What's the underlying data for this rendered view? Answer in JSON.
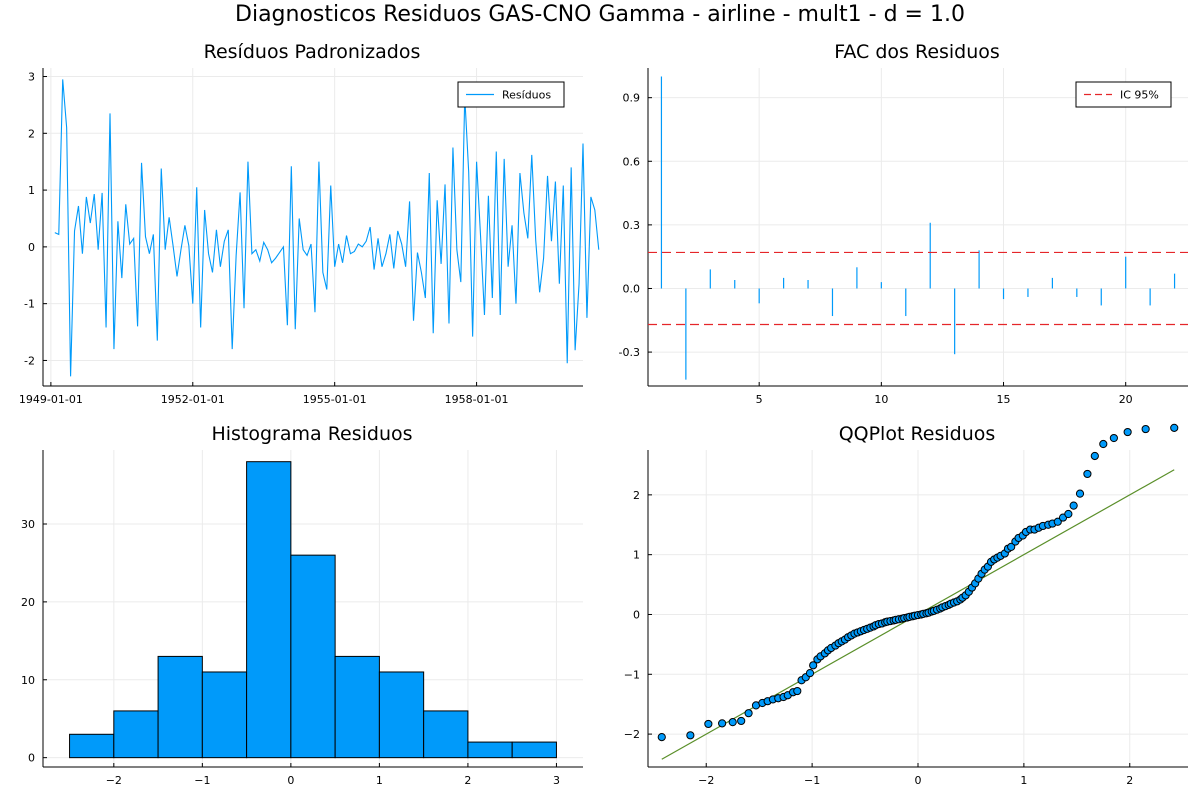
{
  "figure": {
    "suptitle": "Diagnosticos Residuos  GAS-CNO Gamma - airline - mult1 - d = 1.0"
  },
  "colors": {
    "series": "#009AFA",
    "ci": "#E5262A",
    "ref_line": "#5A8F29",
    "grid": "#EBEBEB",
    "axis": "#000000",
    "marker_edge": "#000000"
  },
  "chart_data": [
    {
      "id": "residuals",
      "type": "line",
      "title": "Resíduos Padronizados",
      "xlabel": "",
      "ylabel": "",
      "x_start": "1949-02",
      "x_step": "month",
      "xlim": [
        "1948-11",
        "1960-04"
      ],
      "ylim": [
        -2.45,
        3.15
      ],
      "xticks": [
        "1949-01-01",
        "1952-01-01",
        "1955-01-01",
        "1958-01-01"
      ],
      "yticks": [
        -2,
        -1,
        0,
        1,
        2,
        3
      ],
      "legend": {
        "position": "top-right",
        "entries": [
          "Resíduos"
        ]
      },
      "grid": true,
      "series": [
        {
          "name": "Resíduos",
          "values": [
            0.25,
            0.22,
            2.95,
            2.1,
            -2.28,
            0.28,
            0.72,
            -0.12,
            0.88,
            0.42,
            0.93,
            -0.05,
            0.95,
            -1.42,
            2.35,
            -1.8,
            0.45,
            -0.55,
            0.75,
            0.05,
            0.15,
            -1.4,
            1.48,
            0.18,
            -0.12,
            0.22,
            -1.65,
            1.38,
            -0.05,
            0.52,
            0.02,
            -0.52,
            -0.05,
            0.38,
            0.02,
            -1.0,
            1.05,
            -1.42,
            0.65,
            -0.12,
            -0.45,
            0.3,
            -0.35,
            0.1,
            0.3,
            -1.8,
            -0.15,
            0.96,
            -1.08,
            1.5,
            -0.12,
            -0.05,
            -0.25,
            0.08,
            -0.05,
            -0.28,
            -0.2,
            -0.1,
            0.0,
            -1.38,
            1.42,
            -1.45,
            0.5,
            -0.05,
            -0.15,
            0.05,
            -1.15,
            1.5,
            -0.45,
            -0.75,
            1.08,
            -0.35,
            0.05,
            -0.28,
            0.2,
            -0.12,
            -0.08,
            0.05,
            0.0,
            0.1,
            0.35,
            -0.4,
            0.15,
            -0.35,
            -0.12,
            0.22,
            -0.38,
            0.28,
            0.05,
            -0.35,
            0.8,
            -1.3,
            -0.1,
            -0.45,
            -0.9,
            1.3,
            -1.52,
            0.82,
            -0.3,
            1.1,
            -1.35,
            1.75,
            -0.05,
            -0.62,
            2.65,
            1.32,
            -1.58,
            1.5,
            0.2,
            -1.2,
            0.9,
            -0.9,
            1.68,
            -1.2,
            1.55,
            -0.35,
            0.38,
            -1.0,
            1.3,
            0.6,
            0.15,
            1.62,
            0.12,
            -0.8,
            -0.2,
            1.25,
            0.1,
            1.15,
            -0.65,
            1.08,
            -2.05,
            1.4,
            -1.82,
            -0.65,
            1.82,
            -1.25,
            0.88,
            0.65,
            -0.05
          ]
        }
      ]
    },
    {
      "id": "acf",
      "type": "bar",
      "title": "FAC dos Residuos",
      "xlabel": "",
      "ylabel": "",
      "xlim": [
        0.45,
        22.55
      ],
      "ylim": [
        -0.46,
        1.04
      ],
      "xticks": [
        5,
        10,
        15,
        20
      ],
      "yticks": [
        -0.3,
        0.0,
        0.3,
        0.6,
        0.9
      ],
      "ytick_labels": [
        "-0.3",
        "0.0",
        "0.3",
        "0.6",
        "0.9"
      ],
      "legend": {
        "position": "top-right",
        "entries": [
          "IC 95%"
        ]
      },
      "grid": true,
      "lags": [
        1,
        2,
        3,
        4,
        5,
        6,
        7,
        8,
        9,
        10,
        11,
        12,
        13,
        14,
        15,
        16,
        17,
        18,
        19,
        20,
        21,
        22
      ],
      "values": [
        1.0,
        -0.43,
        0.09,
        0.04,
        -0.07,
        0.05,
        0.04,
        -0.13,
        0.1,
        0.03,
        -0.13,
        0.31,
        -0.31,
        0.18,
        -0.05,
        -0.04,
        0.05,
        -0.04,
        -0.08,
        0.15,
        -0.08,
        0.07
      ],
      "ci_upper": 0.17,
      "ci_lower": -0.17
    },
    {
      "id": "histogram",
      "type": "bar",
      "title": "Histograma Residuos",
      "xlabel": "",
      "ylabel": "",
      "xlim": [
        -2.8,
        3.3
      ],
      "ylim": [
        -1.2,
        39.5
      ],
      "xticks": [
        -2,
        -1,
        0,
        1,
        2,
        3
      ],
      "yticks": [
        0,
        10,
        20,
        30
      ],
      "grid": true,
      "bin_edges": [
        -2.5,
        -2.0,
        -1.5,
        -1.0,
        -0.5,
        0.0,
        0.5,
        1.0,
        1.5,
        2.0,
        2.5,
        3.0
      ],
      "counts": [
        3,
        6,
        13,
        11,
        38,
        26,
        13,
        11,
        6,
        2,
        2
      ]
    },
    {
      "id": "qqplot",
      "type": "scatter",
      "title": "QQPlot Residuos",
      "xlabel": "",
      "ylabel": "",
      "xlim": [
        -2.55,
        2.55
      ],
      "ylim": [
        -2.55,
        2.75
      ],
      "xticks": [
        -2,
        -1,
        0,
        1,
        2
      ],
      "yticks": [
        -2,
        -1,
        0,
        1,
        2
      ],
      "grid": true,
      "reference_line": {
        "x": [
          -2.42,
          2.42
        ],
        "y": [
          -2.42,
          2.42
        ]
      },
      "points": {
        "x": [
          -2.42,
          -2.15,
          -1.98,
          -1.85,
          -1.75,
          -1.67,
          -1.6,
          -1.53,
          -1.47,
          -1.42,
          -1.37,
          -1.32,
          -1.27,
          -1.23,
          -1.18,
          -1.14,
          -1.1,
          -1.06,
          -1.02,
          -0.99,
          -0.95,
          -0.92,
          -0.88,
          -0.85,
          -0.82,
          -0.78,
          -0.75,
          -0.72,
          -0.69,
          -0.66,
          -0.63,
          -0.6,
          -0.57,
          -0.54,
          -0.51,
          -0.48,
          -0.45,
          -0.42,
          -0.4,
          -0.37,
          -0.34,
          -0.31,
          -0.29,
          -0.26,
          -0.23,
          -0.21,
          -0.18,
          -0.15,
          -0.13,
          -0.1,
          -0.08,
          -0.05,
          -0.03,
          0.0,
          0.03,
          0.05,
          0.08,
          0.1,
          0.13,
          0.15,
          0.18,
          0.21,
          0.23,
          0.26,
          0.29,
          0.31,
          0.34,
          0.37,
          0.4,
          0.42,
          0.45,
          0.48,
          0.51,
          0.54,
          0.57,
          0.6,
          0.63,
          0.66,
          0.69,
          0.72,
          0.75,
          0.78,
          0.82,
          0.85,
          0.88,
          0.92,
          0.95,
          0.99,
          1.02,
          1.06,
          1.1,
          1.14,
          1.18,
          1.23,
          1.27,
          1.32,
          1.37,
          1.42,
          1.47,
          1.53,
          1.6,
          1.67,
          1.75,
          1.85,
          1.98,
          2.15,
          2.42
        ],
        "y": [
          -2.05,
          -2.02,
          -1.83,
          -1.82,
          -1.8,
          -1.78,
          -1.65,
          -1.52,
          -1.48,
          -1.45,
          -1.42,
          -1.4,
          -1.38,
          -1.35,
          -1.3,
          -1.28,
          -1.1,
          -1.05,
          -0.98,
          -0.85,
          -0.75,
          -0.7,
          -0.65,
          -0.6,
          -0.56,
          -0.52,
          -0.48,
          -0.45,
          -0.42,
          -0.38,
          -0.35,
          -0.32,
          -0.3,
          -0.28,
          -0.26,
          -0.24,
          -0.22,
          -0.2,
          -0.18,
          -0.16,
          -0.15,
          -0.13,
          -0.12,
          -0.11,
          -0.1,
          -0.09,
          -0.08,
          -0.07,
          -0.06,
          -0.05,
          -0.04,
          -0.03,
          -0.02,
          -0.01,
          0.0,
          0.01,
          0.02,
          0.03,
          0.05,
          0.06,
          0.08,
          0.1,
          0.12,
          0.14,
          0.16,
          0.18,
          0.2,
          0.22,
          0.25,
          0.28,
          0.32,
          0.38,
          0.45,
          0.52,
          0.6,
          0.68,
          0.75,
          0.8,
          0.88,
          0.92,
          0.95,
          0.98,
          1.02,
          1.1,
          1.13,
          1.22,
          1.28,
          1.32,
          1.38,
          1.42,
          1.42,
          1.45,
          1.48,
          1.5,
          1.52,
          1.55,
          1.62,
          1.68,
          1.82,
          2.02,
          2.35,
          2.65,
          2.85,
          2.95,
          3.05,
          3.1,
          3.12
        ]
      }
    }
  ]
}
